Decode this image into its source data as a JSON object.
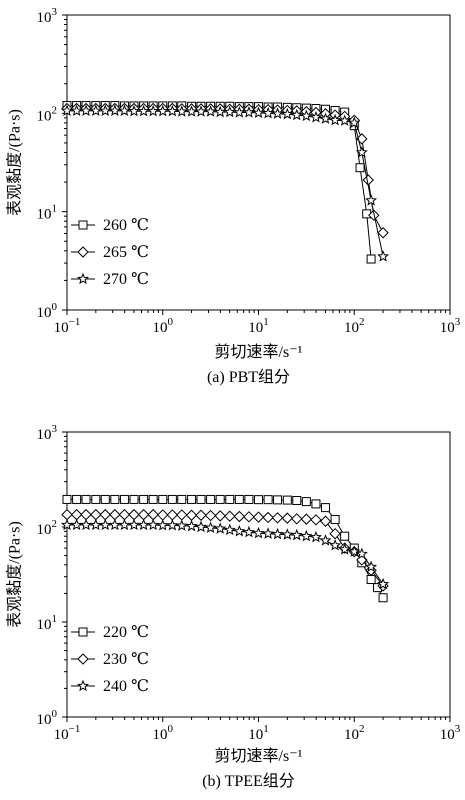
{
  "charts": [
    {
      "id": "a",
      "caption": "(a) PBT组分",
      "chart_data": {
        "type": "line",
        "xscale": "log",
        "yscale": "log",
        "xlim": [
          0.1,
          1000
        ],
        "ylim": [
          1,
          1000
        ],
        "xlabel": "剪切速率/s⁻¹",
        "ylabel": "表观黏度/(Pa·s)",
        "legend_position": "left-lower",
        "series": [
          {
            "name": "260 ℃",
            "marker": "square",
            "points": [
              [
                0.1,
                120
              ],
              [
                0.126,
                120
              ],
              [
                0.158,
                120
              ],
              [
                0.2,
                120
              ],
              [
                0.251,
                120
              ],
              [
                0.316,
                120
              ],
              [
                0.398,
                119
              ],
              [
                0.501,
                119
              ],
              [
                0.631,
                119
              ],
              [
                0.794,
                119
              ],
              [
                1,
                119
              ],
              [
                1.26,
                119
              ],
              [
                1.58,
                119
              ],
              [
                2,
                118
              ],
              [
                2.51,
                118
              ],
              [
                3.16,
                118
              ],
              [
                3.98,
                118
              ],
              [
                5.01,
                118
              ],
              [
                6.31,
                117
              ],
              [
                7.94,
                117
              ],
              [
                10,
                117
              ],
              [
                12.6,
                116
              ],
              [
                15.8,
                116
              ],
              [
                20,
                115
              ],
              [
                25.1,
                114
              ],
              [
                31.6,
                113
              ],
              [
                39.8,
                112
              ],
              [
                50.1,
                110
              ],
              [
                63.1,
                107
              ],
              [
                79.4,
                103
              ],
              [
                100,
                75
              ],
              [
                115,
                28
              ],
              [
                135,
                9.5
              ],
              [
                150,
                3.3
              ]
            ]
          },
          {
            "name": "265 ℃",
            "marker": "diamond",
            "points": [
              [
                0.1,
                112
              ],
              [
                0.126,
                112
              ],
              [
                0.158,
                112
              ],
              [
                0.2,
                112
              ],
              [
                0.251,
                112
              ],
              [
                0.316,
                112
              ],
              [
                0.398,
                112
              ],
              [
                0.501,
                112
              ],
              [
                0.631,
                112
              ],
              [
                0.794,
                112
              ],
              [
                1,
                112
              ],
              [
                1.26,
                112
              ],
              [
                1.58,
                111
              ],
              [
                2,
                111
              ],
              [
                2.51,
                111
              ],
              [
                3.16,
                111
              ],
              [
                3.98,
                111
              ],
              [
                5.01,
                110
              ],
              [
                6.31,
                110
              ],
              [
                7.94,
                110
              ],
              [
                10,
                109
              ],
              [
                12.6,
                109
              ],
              [
                15.8,
                108
              ],
              [
                20,
                107
              ],
              [
                25.1,
                106
              ],
              [
                31.6,
                104
              ],
              [
                39.8,
                102
              ],
              [
                50.1,
                99
              ],
              [
                63.1,
                96
              ],
              [
                79.4,
                93
              ],
              [
                100,
                85
              ],
              [
                120,
                55
              ],
              [
                140,
                21
              ],
              [
                160,
                9.2
              ],
              [
                200,
                6.1
              ]
            ]
          },
          {
            "name": "270 ℃",
            "marker": "star",
            "points": [
              [
                0.1,
                106
              ],
              [
                0.126,
                106
              ],
              [
                0.158,
                106
              ],
              [
                0.2,
                106
              ],
              [
                0.251,
                106
              ],
              [
                0.316,
                106
              ],
              [
                0.398,
                106
              ],
              [
                0.501,
                105
              ],
              [
                0.631,
                105
              ],
              [
                0.794,
                105
              ],
              [
                1,
                105
              ],
              [
                1.26,
                105
              ],
              [
                1.58,
                104
              ],
              [
                2,
                104
              ],
              [
                2.51,
                104
              ],
              [
                3.16,
                104
              ],
              [
                3.98,
                103
              ],
              [
                5.01,
                103
              ],
              [
                6.31,
                102
              ],
              [
                7.94,
                102
              ],
              [
                10,
                101
              ],
              [
                12.6,
                100
              ],
              [
                15.8,
                99
              ],
              [
                20,
                98
              ],
              [
                25.1,
                96
              ],
              [
                31.6,
                94
              ],
              [
                39.8,
                91
              ],
              [
                50.1,
                88
              ],
              [
                63.1,
                85
              ],
              [
                79.4,
                84
              ],
              [
                100,
                80
              ],
              [
                120,
                40
              ],
              [
                150,
                13
              ],
              [
                200,
                3.5
              ]
            ]
          }
        ]
      }
    },
    {
      "id": "b",
      "caption": "(b) TPEE组分",
      "chart_data": {
        "type": "line",
        "xscale": "log",
        "yscale": "log",
        "xlim": [
          0.1,
          1000
        ],
        "ylim": [
          1,
          1000
        ],
        "xlabel": "剪切速率/s⁻¹",
        "ylabel": "表观黏度/(Pa·s)",
        "legend_position": "left-lower",
        "series": [
          {
            "name": "220 ℃",
            "marker": "square",
            "points": [
              [
                0.1,
                195
              ],
              [
                0.126,
                195
              ],
              [
                0.158,
                195
              ],
              [
                0.2,
                195
              ],
              [
                0.251,
                195
              ],
              [
                0.316,
                195
              ],
              [
                0.398,
                195
              ],
              [
                0.501,
                195
              ],
              [
                0.631,
                195
              ],
              [
                0.794,
                195
              ],
              [
                1,
                195
              ],
              [
                1.26,
                195
              ],
              [
                1.58,
                195
              ],
              [
                2,
                195
              ],
              [
                2.51,
                195
              ],
              [
                3.16,
                195
              ],
              [
                3.98,
                195
              ],
              [
                5.01,
                195
              ],
              [
                6.31,
                195
              ],
              [
                7.94,
                195
              ],
              [
                10,
                194
              ],
              [
                12.6,
                194
              ],
              [
                15.8,
                193
              ],
              [
                20,
                192
              ],
              [
                25.1,
                190
              ],
              [
                31.6,
                185
              ],
              [
                39.8,
                175
              ],
              [
                50.1,
                160
              ],
              [
                63.1,
                120
              ],
              [
                79.4,
                80
              ],
              [
                100,
                60
              ],
              [
                120,
                42
              ],
              [
                150,
                28
              ],
              [
                175,
                23
              ],
              [
                200,
                18
              ]
            ]
          },
          {
            "name": "230 ℃",
            "marker": "diamond",
            "points": [
              [
                0.1,
                135
              ],
              [
                0.126,
                135
              ],
              [
                0.158,
                135
              ],
              [
                0.2,
                135
              ],
              [
                0.251,
                135
              ],
              [
                0.316,
                135
              ],
              [
                0.398,
                135
              ],
              [
                0.501,
                135
              ],
              [
                0.631,
                135
              ],
              [
                0.794,
                135
              ],
              [
                1,
                134
              ],
              [
                1.26,
                134
              ],
              [
                1.58,
                134
              ],
              [
                2,
                133
              ],
              [
                2.51,
                133
              ],
              [
                3.16,
                132
              ],
              [
                3.98,
                131
              ],
              [
                5.01,
                130
              ],
              [
                6.31,
                129
              ],
              [
                7.94,
                128
              ],
              [
                10,
                127
              ],
              [
                12.6,
                126
              ],
              [
                15.8,
                125
              ],
              [
                20,
                124
              ],
              [
                25.1,
                122
              ],
              [
                31.6,
                121
              ],
              [
                39.8,
                119
              ],
              [
                50.1,
                115
              ],
              [
                63.1,
                85
              ],
              [
                79.4,
                60
              ],
              [
                100,
                55
              ],
              [
                120,
                45
              ],
              [
                150,
                35
              ],
              [
                200,
                24
              ]
            ]
          },
          {
            "name": "240 ℃",
            "marker": "star",
            "points": [
              [
                0.1,
                105
              ],
              [
                0.126,
                105
              ],
              [
                0.158,
                105
              ],
              [
                0.2,
                105
              ],
              [
                0.251,
                105
              ],
              [
                0.316,
                105
              ],
              [
                0.398,
                105
              ],
              [
                0.501,
                105
              ],
              [
                0.631,
                105
              ],
              [
                0.794,
                105
              ],
              [
                1,
                104
              ],
              [
                1.26,
                104
              ],
              [
                1.58,
                103
              ],
              [
                2,
                102
              ],
              [
                2.51,
                100
              ],
              [
                3.16,
                98
              ],
              [
                3.98,
                96
              ],
              [
                5.01,
                93
              ],
              [
                6.31,
                90
              ],
              [
                7.94,
                88
              ],
              [
                10,
                86
              ],
              [
                12.6,
                85
              ],
              [
                15.8,
                84
              ],
              [
                20,
                83
              ],
              [
                25.1,
                82
              ],
              [
                31.6,
                80
              ],
              [
                39.8,
                78
              ],
              [
                50.1,
                72
              ],
              [
                63.1,
                64
              ],
              [
                79.4,
                58
              ],
              [
                100,
                55
              ],
              [
                120,
                52
              ],
              [
                150,
                38
              ],
              [
                200,
                25
              ]
            ]
          }
        ]
      }
    }
  ],
  "tick_labels": {
    "x": [
      {
        "base": "10",
        "exp": "−1"
      },
      {
        "base": "10",
        "exp": "0"
      },
      {
        "base": "10",
        "exp": "1"
      },
      {
        "base": "10",
        "exp": "2"
      },
      {
        "base": "10",
        "exp": "3"
      }
    ],
    "y": [
      {
        "base": "10",
        "exp": "0"
      },
      {
        "base": "10",
        "exp": "1"
      },
      {
        "base": "10",
        "exp": "2"
      },
      {
        "base": "10",
        "exp": "3"
      }
    ]
  },
  "style": {
    "line_color": "#000000",
    "marker_fill": "#ffffff"
  }
}
